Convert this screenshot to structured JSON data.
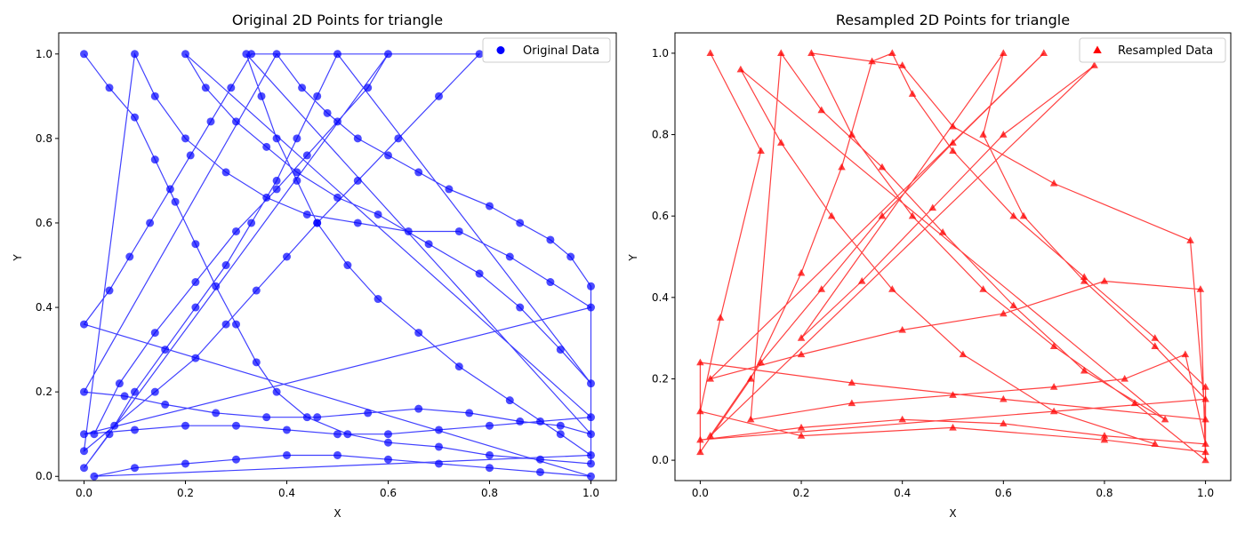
{
  "chart_data": [
    {
      "type": "scatter",
      "title": "Original 2D Points for triangle",
      "xlabel": "X",
      "ylabel": "Y",
      "xlim": [
        -0.05,
        1.05
      ],
      "ylim": [
        -0.01,
        1.05
      ],
      "xticks": [
        0.0,
        0.2,
        0.4,
        0.6,
        0.8,
        1.0
      ],
      "yticks": [
        0.0,
        0.2,
        0.4,
        0.6,
        0.8,
        1.0
      ],
      "grid": false,
      "legend_position": "top-right",
      "color": "#0000ff",
      "marker": "circle",
      "connected": true,
      "series": [
        {
          "name": "Original Data",
          "points": [
            [
              0.0,
              1.0
            ],
            [
              0.05,
              0.92
            ],
            [
              0.1,
              0.85
            ],
            [
              0.14,
              0.75
            ],
            [
              0.18,
              0.65
            ],
            [
              0.22,
              0.55
            ],
            [
              0.26,
              0.45
            ],
            [
              0.3,
              0.36
            ],
            [
              0.34,
              0.27
            ],
            [
              0.38,
              0.2
            ],
            [
              0.44,
              0.14
            ],
            [
              0.52,
              0.1
            ],
            [
              0.6,
              0.08
            ],
            [
              0.7,
              0.07
            ],
            [
              0.8,
              0.05
            ],
            [
              0.9,
              0.04
            ],
            [
              1.0,
              0.03
            ],
            [
              1.0,
              0.45
            ],
            [
              0.96,
              0.52
            ],
            [
              0.92,
              0.56
            ],
            [
              0.86,
              0.6
            ],
            [
              0.8,
              0.64
            ],
            [
              0.72,
              0.68
            ],
            [
              0.66,
              0.72
            ],
            [
              0.6,
              0.76
            ],
            [
              0.54,
              0.8
            ],
            [
              0.48,
              0.86
            ],
            [
              0.43,
              0.92
            ],
            [
              0.38,
              1.0
            ],
            [
              0.0,
              0.2
            ],
            [
              0.08,
              0.19
            ],
            [
              0.16,
              0.17
            ],
            [
              0.26,
              0.15
            ],
            [
              0.36,
              0.14
            ],
            [
              0.46,
              0.14
            ],
            [
              0.56,
              0.15
            ],
            [
              0.66,
              0.16
            ],
            [
              0.76,
              0.15
            ],
            [
              0.86,
              0.13
            ],
            [
              0.94,
              0.12
            ],
            [
              1.0,
              0.1
            ],
            [
              0.32,
              1.0
            ],
            [
              0.35,
              0.9
            ],
            [
              0.38,
              0.8
            ],
            [
              0.42,
              0.7
            ],
            [
              0.46,
              0.6
            ],
            [
              0.52,
              0.5
            ],
            [
              0.58,
              0.42
            ],
            [
              0.66,
              0.34
            ],
            [
              0.74,
              0.26
            ],
            [
              0.84,
              0.18
            ],
            [
              0.94,
              0.1
            ],
            [
              1.0,
              0.05
            ],
            [
              0.02,
              0.0
            ],
            [
              0.1,
              0.02
            ],
            [
              0.2,
              0.03
            ],
            [
              0.3,
              0.04
            ],
            [
              0.4,
              0.05
            ],
            [
              0.5,
              0.05
            ],
            [
              0.6,
              0.04
            ],
            [
              0.7,
              0.03
            ],
            [
              0.8,
              0.02
            ],
            [
              0.9,
              0.01
            ],
            [
              1.0,
              0.0
            ],
            [
              0.0,
              0.36
            ],
            [
              0.05,
              0.44
            ],
            [
              0.09,
              0.52
            ],
            [
              0.13,
              0.6
            ],
            [
              0.17,
              0.68
            ],
            [
              0.21,
              0.76
            ],
            [
              0.25,
              0.84
            ],
            [
              0.29,
              0.92
            ],
            [
              0.33,
              1.0
            ],
            [
              0.78,
              1.0
            ],
            [
              0.7,
              0.9
            ],
            [
              0.62,
              0.8
            ],
            [
              0.54,
              0.7
            ],
            [
              0.46,
              0.6
            ],
            [
              0.4,
              0.52
            ],
            [
              0.34,
              0.44
            ],
            [
              0.28,
              0.36
            ],
            [
              0.22,
              0.28
            ],
            [
              0.14,
              0.2
            ],
            [
              0.06,
              0.12
            ],
            [
              0.0,
              0.06
            ],
            [
              0.1,
              1.0
            ],
            [
              0.14,
              0.9
            ],
            [
              0.2,
              0.8
            ],
            [
              0.28,
              0.72
            ],
            [
              0.36,
              0.66
            ],
            [
              0.44,
              0.62
            ],
            [
              0.54,
              0.6
            ],
            [
              0.64,
              0.58
            ],
            [
              0.74,
              0.58
            ],
            [
              0.84,
              0.52
            ],
            [
              0.92,
              0.46
            ],
            [
              1.0,
              0.4
            ],
            [
              0.0,
              0.1
            ],
            [
              0.1,
              0.11
            ],
            [
              0.2,
              0.12
            ],
            [
              0.3,
              0.12
            ],
            [
              0.4,
              0.11
            ],
            [
              0.5,
              0.1
            ],
            [
              0.6,
              0.1
            ],
            [
              0.7,
              0.11
            ],
            [
              0.8,
              0.12
            ],
            [
              0.9,
              0.13
            ],
            [
              1.0,
              0.14
            ],
            [
              0.2,
              1.0
            ],
            [
              0.24,
              0.92
            ],
            [
              0.3,
              0.84
            ],
            [
              0.36,
              0.78
            ],
            [
              0.42,
              0.72
            ],
            [
              0.5,
              0.66
            ],
            [
              0.58,
              0.62
            ],
            [
              0.68,
              0.55
            ],
            [
              0.78,
              0.48
            ],
            [
              0.86,
              0.4
            ],
            [
              0.94,
              0.3
            ],
            [
              1.0,
              0.22
            ],
            [
              0.5,
              1.0
            ],
            [
              0.46,
              0.9
            ],
            [
              0.42,
              0.8
            ],
            [
              0.38,
              0.7
            ],
            [
              0.33,
              0.6
            ],
            [
              0.28,
              0.5
            ],
            [
              0.22,
              0.4
            ],
            [
              0.16,
              0.3
            ],
            [
              0.1,
              0.2
            ],
            [
              0.05,
              0.1
            ],
            [
              0.0,
              0.02
            ],
            [
              0.6,
              1.0
            ],
            [
              0.56,
              0.92
            ],
            [
              0.5,
              0.84
            ],
            [
              0.44,
              0.76
            ],
            [
              0.38,
              0.68
            ],
            [
              0.3,
              0.58
            ],
            [
              0.22,
              0.46
            ],
            [
              0.14,
              0.34
            ],
            [
              0.07,
              0.22
            ],
            [
              0.02,
              0.1
            ]
          ]
        }
      ]
    },
    {
      "type": "scatter",
      "title": "Resampled 2D Points for triangle",
      "xlabel": "X",
      "ylabel": "Y",
      "xlim": [
        -0.05,
        1.05
      ],
      "ylim": [
        -0.05,
        1.05
      ],
      "xticks": [
        0.0,
        0.2,
        0.4,
        0.6,
        0.8,
        1.0
      ],
      "yticks": [
        0.0,
        0.2,
        0.4,
        0.6,
        0.8,
        1.0
      ],
      "grid": false,
      "legend_position": "top-right",
      "color": "#ff0000",
      "marker": "triangle",
      "connected": true,
      "series": [
        {
          "name": "Resampled Data",
          "points": [
            [
              0.02,
              1.0
            ],
            [
              0.12,
              0.76
            ],
            [
              0.04,
              0.35
            ],
            [
              0.0,
              0.12
            ],
            [
              0.2,
              0.06
            ],
            [
              0.5,
              0.08
            ],
            [
              0.8,
              0.05
            ],
            [
              1.0,
              0.02
            ],
            [
              1.0,
              0.18
            ],
            [
              0.9,
              0.3
            ],
            [
              0.76,
              0.45
            ],
            [
              0.62,
              0.6
            ],
            [
              0.5,
              0.76
            ],
            [
              0.42,
              0.9
            ],
            [
              0.38,
              1.0
            ],
            [
              0.34,
              0.98
            ],
            [
              0.28,
              0.72
            ],
            [
              0.2,
              0.46
            ],
            [
              0.1,
              0.2
            ],
            [
              0.0,
              0.02
            ],
            [
              0.0,
              0.24
            ],
            [
              0.3,
              0.19
            ],
            [
              0.6,
              0.15
            ],
            [
              1.0,
              0.1
            ],
            [
              0.97,
              0.54
            ],
            [
              0.7,
              0.68
            ],
            [
              0.5,
              0.82
            ],
            [
              0.4,
              0.97
            ],
            [
              0.22,
              1.0
            ],
            [
              0.3,
              0.8
            ],
            [
              0.42,
              0.6
            ],
            [
              0.56,
              0.42
            ],
            [
              0.7,
              0.28
            ],
            [
              0.86,
              0.14
            ],
            [
              1.0,
              0.0
            ],
            [
              0.99,
              0.42
            ],
            [
              0.8,
              0.44
            ],
            [
              0.6,
              0.36
            ],
            [
              0.4,
              0.32
            ],
            [
              0.2,
              0.26
            ],
            [
              0.02,
              0.2
            ],
            [
              0.68,
              1.0
            ],
            [
              0.5,
              0.78
            ],
            [
              0.36,
              0.6
            ],
            [
              0.24,
              0.42
            ],
            [
              0.12,
              0.24
            ],
            [
              0.02,
              0.06
            ],
            [
              0.78,
              0.97
            ],
            [
              0.6,
              0.8
            ],
            [
              0.46,
              0.62
            ],
            [
              0.32,
              0.44
            ],
            [
              0.2,
              0.3
            ],
            [
              0.6,
              1.0
            ],
            [
              0.56,
              0.8
            ],
            [
              0.64,
              0.6
            ],
            [
              0.76,
              0.44
            ],
            [
              0.9,
              0.28
            ],
            [
              1.0,
              0.15
            ],
            [
              0.0,
              0.05
            ],
            [
              0.2,
              0.08
            ],
            [
              0.4,
              0.1
            ],
            [
              0.6,
              0.09
            ],
            [
              0.8,
              0.06
            ],
            [
              1.0,
              0.04
            ],
            [
              0.96,
              0.26
            ],
            [
              0.84,
              0.2
            ],
            [
              0.7,
              0.18
            ],
            [
              0.5,
              0.16
            ],
            [
              0.3,
              0.14
            ],
            [
              0.1,
              0.1
            ],
            [
              0.16,
              1.0
            ],
            [
              0.24,
              0.86
            ],
            [
              0.36,
              0.72
            ],
            [
              0.48,
              0.56
            ],
            [
              0.62,
              0.38
            ],
            [
              0.76,
              0.22
            ],
            [
              0.92,
              0.1
            ],
            [
              0.08,
              0.96
            ],
            [
              0.16,
              0.78
            ],
            [
              0.26,
              0.6
            ],
            [
              0.38,
              0.42
            ],
            [
              0.52,
              0.26
            ],
            [
              0.7,
              0.12
            ],
            [
              0.9,
              0.04
            ]
          ]
        }
      ]
    }
  ]
}
